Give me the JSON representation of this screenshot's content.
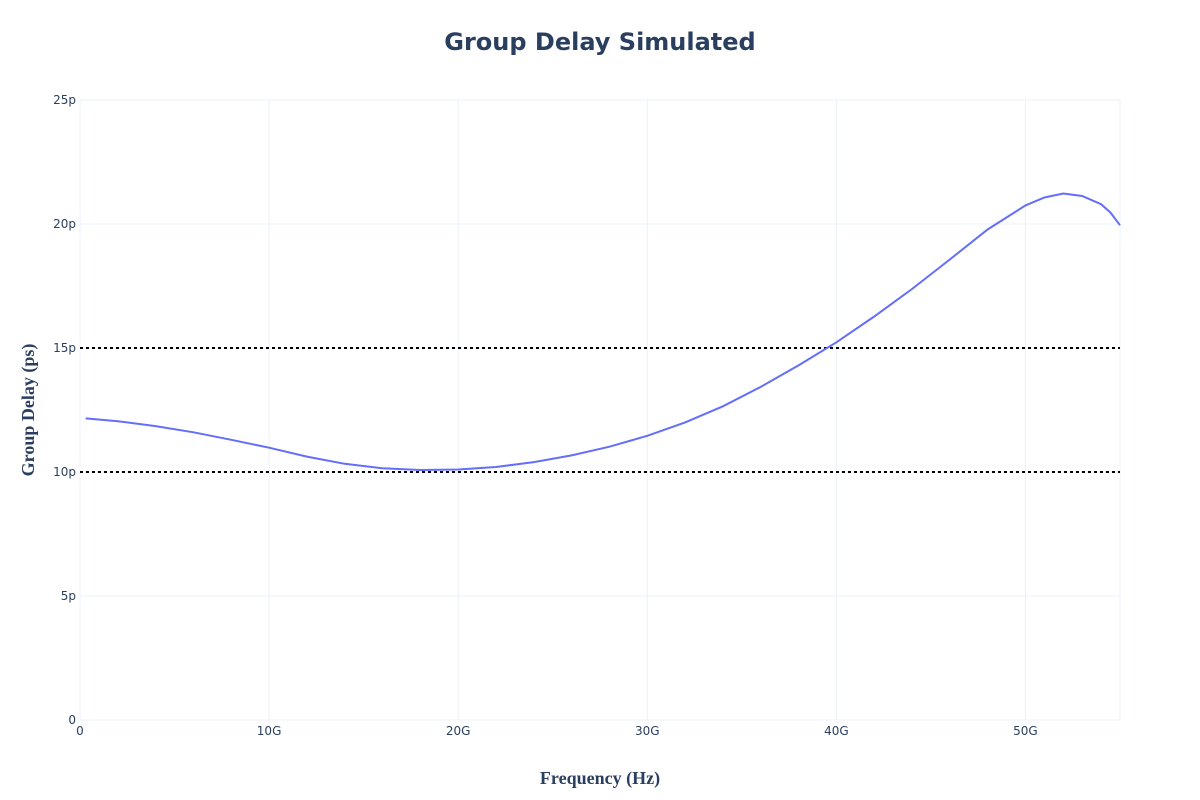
{
  "chart_data": {
    "type": "line",
    "title": "Group Delay Simulated",
    "xlabel": "Frequency (Hz)",
    "ylabel": "Group Delay (ps)",
    "xlim": [
      0,
      55000000000
    ],
    "ylim": [
      0,
      2.5e-11
    ],
    "x_ticks": [
      {
        "value": 0,
        "label": "0"
      },
      {
        "value": 10000000000,
        "label": "10G"
      },
      {
        "value": 20000000000,
        "label": "20G"
      },
      {
        "value": 30000000000,
        "label": "30G"
      },
      {
        "value": 40000000000,
        "label": "40G"
      },
      {
        "value": 50000000000,
        "label": "50G"
      }
    ],
    "y_ticks": [
      {
        "value": 0,
        "label": "0"
      },
      {
        "value": 5e-12,
        "label": "5p"
      },
      {
        "value": 1e-11,
        "label": "10p"
      },
      {
        "value": 1.5e-11,
        "label": "15p"
      },
      {
        "value": 2e-11,
        "label": "20p"
      },
      {
        "value": 2.5e-11,
        "label": "25p"
      }
    ],
    "grid": true,
    "series": [
      {
        "color": "#636efa",
        "x": [
          300000000,
          2000000000,
          4000000000,
          6000000000,
          8000000000,
          10000000000,
          12000000000,
          14000000000,
          16000000000,
          18000000000,
          20000000000,
          22000000000,
          24000000000,
          26000000000,
          28000000000,
          30000000000,
          32000000000,
          34000000000,
          36000000000,
          38000000000,
          40000000000,
          42000000000,
          44000000000,
          46000000000,
          48000000000,
          50000000000,
          51000000000,
          52000000000,
          53000000000,
          54000000000,
          54500000000,
          55000000000
        ],
        "y": [
          1.216e-11,
          1.205e-11,
          1.185e-11,
          1.16e-11,
          1.13e-11,
          1.098e-11,
          1.062e-11,
          1.033e-11,
          1.015e-11,
          1.008e-11,
          1.01e-11,
          1.02e-11,
          1.04e-11,
          1.067e-11,
          1.102e-11,
          1.146e-11,
          1.2e-11,
          1.265e-11,
          1.343e-11,
          1.43e-11,
          1.523e-11,
          1.627e-11,
          1.738e-11,
          1.857e-11,
          1.978e-11,
          2.075e-11,
          2.107e-11,
          2.123e-11,
          2.113e-11,
          2.08e-11,
          2.046e-11,
          1.995e-11
        ]
      }
    ],
    "hlines": [
      {
        "y": 1.5e-11,
        "color": "#000000",
        "dash": "dot"
      },
      {
        "y": 1e-11,
        "color": "#000000",
        "dash": "dot"
      }
    ]
  }
}
